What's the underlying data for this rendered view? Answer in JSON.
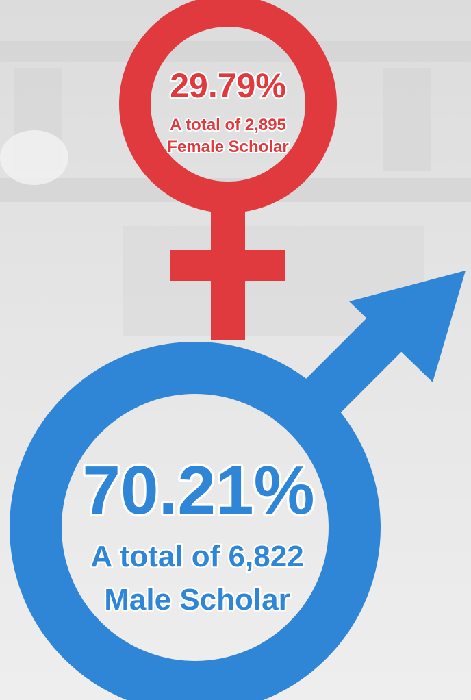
{
  "female": {
    "percent": "29.79%",
    "total": "A total of 2,895",
    "label": "Female Scholar"
  },
  "male": {
    "percent": "70.21%",
    "total": "A total of 6,822",
    "label": "Male Scholar"
  }
}
